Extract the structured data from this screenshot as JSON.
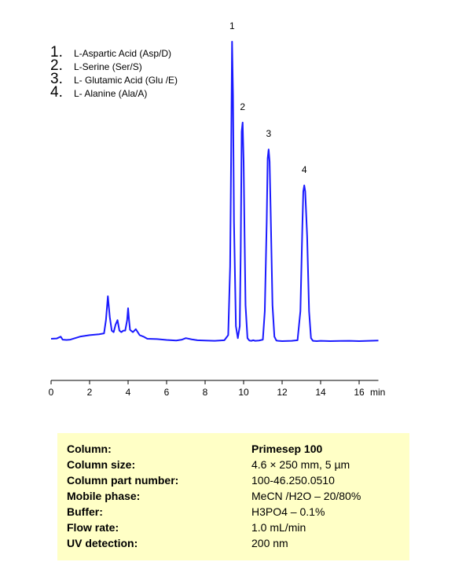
{
  "chart_data": {
    "type": "line",
    "title": "",
    "xlabel": "min",
    "ylabel": "",
    "xlim": [
      0,
      17
    ],
    "ylim": [
      0,
      100
    ],
    "x_ticks": [
      0,
      2,
      4,
      6,
      8,
      10,
      12,
      14,
      16
    ],
    "x_tick_labels": [
      "0",
      "2",
      "4",
      "6",
      "8",
      "10",
      "12",
      "14",
      "16"
    ],
    "grid": false,
    "series": [
      {
        "color": "#1a1aff",
        "x": [
          0.0,
          0.3,
          0.5,
          0.6,
          0.8,
          1.0,
          1.5,
          2.0,
          2.5,
          2.75,
          2.85,
          2.95,
          3.05,
          3.15,
          3.25,
          3.35,
          3.45,
          3.55,
          3.65,
          3.75,
          3.85,
          3.95,
          4.0,
          4.05,
          4.1,
          4.15,
          4.25,
          4.4,
          4.6,
          4.8,
          5.0,
          5.5,
          6.0,
          6.5,
          6.8,
          7.0,
          7.3,
          7.6,
          8.0,
          8.5,
          9.0,
          9.2,
          9.3,
          9.35,
          9.4,
          9.45,
          9.5,
          9.6,
          9.7,
          9.8,
          9.85,
          9.9,
          9.95,
          10.0,
          10.05,
          10.1,
          10.2,
          10.3,
          10.4,
          10.5,
          10.6,
          10.8,
          11.0,
          11.1,
          11.2,
          11.25,
          11.3,
          11.35,
          11.4,
          11.5,
          11.6,
          11.7,
          11.8,
          12.0,
          12.5,
          12.8,
          12.95,
          13.05,
          13.1,
          13.15,
          13.2,
          13.3,
          13.4,
          13.5,
          13.6,
          13.8,
          14.0,
          14.5,
          15.0,
          15.5,
          16.0,
          16.5,
          17.0
        ],
        "y": [
          0.8,
          0.9,
          1.5,
          0.5,
          0.4,
          0.5,
          1.5,
          2.0,
          2.3,
          2.6,
          7.0,
          15.0,
          8.0,
          3.5,
          3.0,
          5.5,
          7.0,
          3.5,
          3.0,
          3.5,
          3.5,
          7.0,
          11.0,
          7.0,
          3.8,
          3.5,
          3.0,
          4.0,
          2.0,
          1.5,
          0.8,
          0.7,
          0.4,
          0.2,
          0.5,
          1.0,
          0.6,
          0.3,
          0.2,
          0.1,
          0.3,
          2.0,
          25.0,
          60.0,
          100.0,
          82.0,
          40.0,
          5.0,
          1.0,
          5.0,
          30.0,
          70.0,
          73.0,
          60.0,
          35.0,
          12.0,
          1.0,
          0.2,
          0.1,
          0.3,
          0.1,
          0.2,
          0.5,
          10.0,
          40.0,
          61.0,
          64.0,
          60.0,
          45.0,
          12.0,
          1.5,
          0.2,
          0.1,
          0.0,
          0.1,
          0.3,
          10.0,
          38.0,
          50.0,
          52.0,
          50.0,
          35.0,
          10.0,
          1.0,
          0.1,
          0.0,
          0.1,
          0.0,
          0.05,
          0.1,
          0.0,
          0.1,
          0.2
        ]
      }
    ],
    "peak_labels": [
      {
        "label": "1",
        "x": 9.4,
        "y": 100.0
      },
      {
        "label": "2",
        "x": 9.95,
        "y": 73.0
      },
      {
        "label": "3",
        "x": 11.3,
        "y": 64.0
      },
      {
        "label": "4",
        "x": 13.15,
        "y": 52.0
      }
    ]
  },
  "legend": [
    {
      "num": "1.",
      "label": "L-Aspartic Acid (Asp/D)"
    },
    {
      "num": "2.",
      "label": "L-Serine (Ser/S)"
    },
    {
      "num": "3.",
      "label": "L- Glutamic  Acid (Glu /E)"
    },
    {
      "num": "4.",
      "label": "L- Alanine  (Ala/A)"
    }
  ],
  "conditions": [
    {
      "key": "Column:",
      "value": "Primesep 100",
      "value_bold": true
    },
    {
      "key": "Column size:",
      "value": "4.6 × 250 mm, 5 µm",
      "value_bold": false
    },
    {
      "key": "Column part number:",
      "value": "100-46.250.0510",
      "value_bold": false
    },
    {
      "key": "Mobile phase:",
      "value": "MeCN /H2O – 20/80%",
      "value_bold": false
    },
    {
      "key": "Buffer:",
      "value": "H3PO4 – 0.1%",
      "value_bold": false
    },
    {
      "key": "Flow rate:",
      "value": "1.0 mL/min",
      "value_bold": false
    },
    {
      "key": "UV detection:",
      "value": "200 nm",
      "value_bold": false
    }
  ]
}
